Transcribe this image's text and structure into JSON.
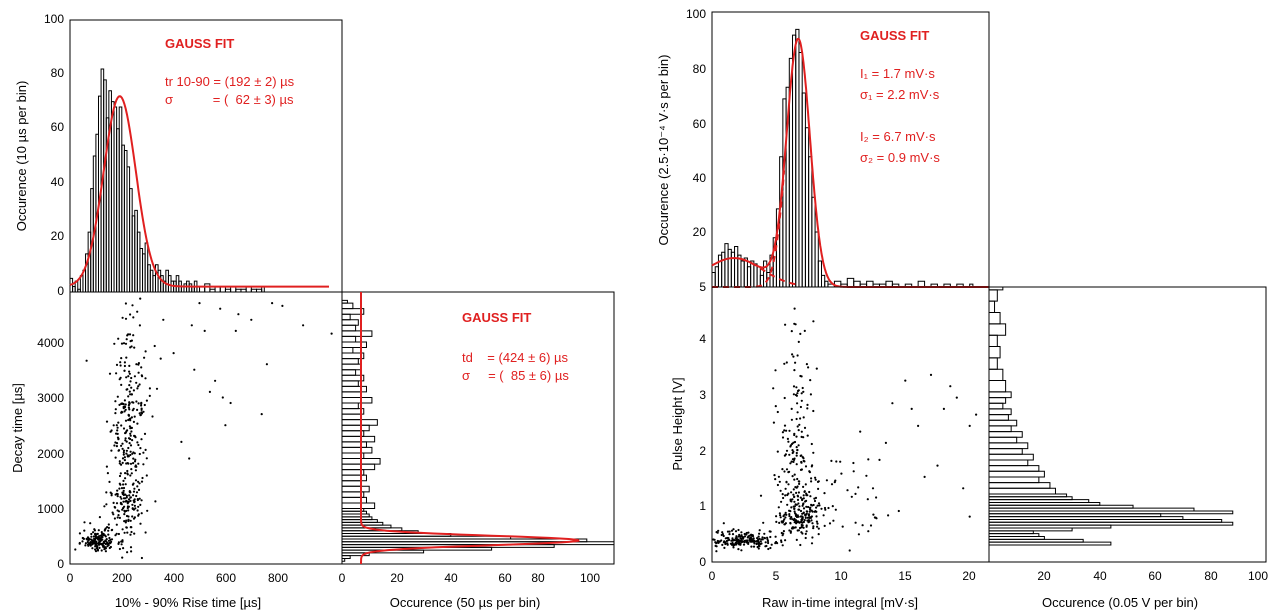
{
  "colors": {
    "axis": "#000000",
    "fit": "#e02020",
    "hist": "#000000",
    "points": "#000000"
  },
  "left": {
    "top_hist": {
      "ylabel": "Occurence (10 µs per bin)",
      "yticks": [
        "0",
        "20",
        "40",
        "60",
        "80",
        "100"
      ],
      "annotation": {
        "title": "GAUSS FIT",
        "line1": "tr 10-90 = (192 ± 2) µs",
        "line2": "σ           = (  62 ± 3) µs"
      }
    },
    "scatter": {
      "ylabel": "Decay time [µs]",
      "xlabel": "10% - 90% Rise time [µs]",
      "yticks": [
        "0",
        "1000",
        "2000",
        "3000",
        "4000"
      ],
      "xticks": [
        "0",
        "200",
        "400",
        "600",
        "800"
      ]
    },
    "side_hist": {
      "xlabel": "Occurence (50 µs per bin)",
      "xticks": [
        "0",
        "20",
        "40",
        "60",
        "80",
        "100"
      ],
      "annotation": {
        "title": "GAUSS FIT",
        "line1": "td    = (424 ± 6) µs",
        "line2": "σ     = (  85 ± 6) µs"
      }
    }
  },
  "right": {
    "top_hist": {
      "ylabel": "Occurence (2.5·10⁻⁴ V·s per bin)",
      "yticks": [
        "5",
        "20",
        "40",
        "60",
        "80",
        "100"
      ],
      "annotation": {
        "title": "GAUSS FIT",
        "line1": "I₁  = 1.7 mV·s",
        "line2": "σ₁ = 2.2 mV·s",
        "line3": "I₂  = 6.7 mV·s",
        "line4": "σ₂ = 0.9 mV·s"
      }
    },
    "scatter": {
      "ylabel": "Pulse Height [V]",
      "xlabel": "Raw in-time integral [mV·s]",
      "yticks": [
        "0",
        "1",
        "2",
        "3",
        "4"
      ],
      "xticks": [
        "0",
        "5",
        "10",
        "15",
        "20"
      ]
    },
    "side_hist": {
      "xlabel": "Occurence (0.05 V per bin)",
      "xticks": [
        "20",
        "40",
        "60",
        "80",
        "100"
      ]
    }
  },
  "chart_data": [
    {
      "id": "left-top",
      "type": "bar",
      "xlim": [
        0,
        1050
      ],
      "ylim": [
        0,
        100
      ],
      "bin_width": 10,
      "x": [
        0,
        10,
        20,
        30,
        40,
        50,
        60,
        70,
        80,
        90,
        100,
        110,
        120,
        130,
        140,
        150,
        160,
        170,
        180,
        190,
        200,
        210,
        220,
        230,
        240,
        250,
        260,
        270,
        280,
        290,
        300,
        310,
        320,
        330,
        340,
        350,
        360,
        370,
        380,
        390,
        400,
        410,
        420,
        430,
        440,
        450,
        460,
        470,
        480,
        490,
        500,
        520,
        540,
        560,
        580,
        600,
        620,
        640,
        660,
        680,
        700,
        720,
        740
      ],
      "values": [
        5,
        2,
        4,
        1,
        6,
        8,
        14,
        22,
        38,
        50,
        58,
        72,
        82,
        78,
        64,
        74,
        70,
        68,
        60,
        68,
        54,
        52,
        46,
        38,
        28,
        30,
        22,
        16,
        14,
        18,
        10,
        8,
        6,
        10,
        8,
        6,
        4,
        8,
        6,
        4,
        4,
        6,
        4,
        2,
        3,
        4,
        3,
        2,
        4,
        2,
        2,
        3,
        1,
        2,
        2,
        1,
        2,
        1,
        1,
        2,
        1,
        1,
        2
      ],
      "fit": {
        "mean": 192,
        "sigma": 62,
        "amplitude": 70,
        "baseline": 2,
        "label": "GAUSS FIT"
      }
    },
    {
      "id": "left-scatter",
      "type": "scatter",
      "xlim": [
        0,
        1050
      ],
      "ylim": [
        0,
        4900
      ],
      "clusters": [
        {
          "x_mean": 110,
          "x_sd": 35,
          "y_mean": 420,
          "y_sd": 130,
          "n": 170
        },
        {
          "x_mean": 215,
          "x_sd": 35,
          "y_mean": 1300,
          "y_sd": 750,
          "n": 230
        },
        {
          "x_mean": 225,
          "x_sd": 40,
          "y_mean": 2900,
          "y_sd": 900,
          "n": 160
        }
      ],
      "outliers": [
        [
          520,
          4200
        ],
        [
          560,
          3300
        ],
        [
          590,
          3000
        ],
        [
          600,
          2500
        ],
        [
          740,
          2700
        ],
        [
          760,
          3600
        ],
        [
          650,
          4500
        ],
        [
          780,
          4700
        ],
        [
          900,
          4300
        ],
        [
          1010,
          4150
        ],
        [
          540,
          3100
        ],
        [
          400,
          3800
        ],
        [
          620,
          2900
        ],
        [
          430,
          2200
        ],
        [
          460,
          1900
        ],
        [
          640,
          4200
        ],
        [
          700,
          4400
        ],
        [
          820,
          4650
        ],
        [
          500,
          4700
        ],
        [
          580,
          4600
        ],
        [
          470,
          4300
        ],
        [
          360,
          4400
        ],
        [
          350,
          3700
        ],
        [
          480,
          3500
        ]
      ]
    },
    {
      "id": "left-side",
      "type": "bar",
      "orientation": "horizontal",
      "xlim": [
        0,
        100
      ],
      "ylim": [
        0,
        4900
      ],
      "bin_width": 50,
      "y": [
        0,
        50,
        100,
        150,
        200,
        250,
        300,
        350,
        400,
        450,
        500,
        550,
        600,
        650,
        700,
        750,
        800,
        850,
        900,
        950,
        1000,
        1100,
        1200,
        1300,
        1400,
        1500,
        1600,
        1700,
        1800,
        1900,
        2000,
        2100,
        2200,
        2300,
        2400,
        2500,
        2600,
        2700,
        2800,
        2900,
        3000,
        3100,
        3200,
        3300,
        3400,
        3500,
        3600,
        3700,
        3800,
        3900,
        4000,
        4100,
        4200,
        4300,
        4400,
        4500,
        4600,
        4700
      ],
      "values": [
        0,
        1,
        3,
        10,
        30,
        55,
        78,
        100,
        90,
        62,
        40,
        28,
        22,
        18,
        15,
        13,
        11,
        10,
        9,
        8,
        12,
        9,
        8,
        10,
        7,
        9,
        8,
        12,
        14,
        8,
        11,
        9,
        12,
        8,
        10,
        13,
        7,
        8,
        6,
        11,
        7,
        9,
        6,
        8,
        5,
        7,
        6,
        8,
        4,
        9,
        5,
        11,
        5,
        6,
        3,
        8,
        4,
        2
      ],
      "fit": {
        "mean": 424,
        "sigma": 85,
        "amplitude": 80,
        "baseline": 7,
        "label": "GAUSS FIT"
      }
    },
    {
      "id": "right-top",
      "type": "bar",
      "xlim": [
        0,
        21.5
      ],
      "ylim": [
        5,
        100
      ],
      "bin_width": 0.25,
      "x": [
        0,
        0.25,
        0.5,
        0.75,
        1,
        1.25,
        1.5,
        1.75,
        2,
        2.25,
        2.5,
        2.75,
        3,
        3.25,
        3.5,
        3.75,
        4,
        4.25,
        4.5,
        4.75,
        5,
        5.25,
        5.5,
        5.75,
        6,
        6.25,
        6.5,
        6.75,
        7,
        7.25,
        7.5,
        7.75,
        8,
        8.25,
        8.5,
        8.75,
        9,
        9.5,
        10,
        10.5,
        11,
        11.5,
        12,
        12.5,
        13,
        13.5,
        14,
        15,
        16,
        17,
        18,
        19,
        20
      ],
      "values": [
        10,
        12,
        16,
        17,
        20,
        18,
        17,
        19,
        16,
        14,
        15,
        12,
        14,
        13,
        12,
        9,
        14,
        10,
        16,
        22,
        32,
        50,
        70,
        74,
        84,
        92,
        94,
        86,
        72,
        60,
        50,
        36,
        24,
        14,
        9,
        7,
        6,
        7,
        6,
        8,
        7,
        6,
        7,
        6,
        6,
        7,
        6,
        6,
        7,
        6,
        6,
        6,
        6
      ],
      "fit": [
        {
          "mean": 1.7,
          "sigma": 2.2,
          "amplitude": 15,
          "label": "I₁"
        },
        {
          "mean": 6.7,
          "sigma": 0.9,
          "amplitude": 90,
          "label": "I₂"
        }
      ],
      "fit_baseline": 5
    },
    {
      "id": "right-scatter",
      "type": "scatter",
      "xlim": [
        0,
        21.5
      ],
      "ylim": [
        0,
        4.85
      ],
      "clusters": [
        {
          "x_mean": 2.5,
          "x_sd": 1.4,
          "y_mean": 0.38,
          "y_sd": 0.09,
          "n": 200
        },
        {
          "x_mean": 6.8,
          "x_sd": 0.9,
          "y_mean": 0.85,
          "y_sd": 0.35,
          "n": 220
        },
        {
          "x_mean": 6.6,
          "x_sd": 0.7,
          "y_mean": 2.4,
          "y_sd": 1.1,
          "n": 120
        },
        {
          "x_mean": 9.5,
          "x_sd": 2.2,
          "y_mean": 1.0,
          "y_sd": 0.5,
          "n": 60
        }
      ],
      "outliers": [
        [
          14,
          2.8
        ],
        [
          15,
          3.2
        ],
        [
          16,
          2.4
        ],
        [
          17,
          3.3
        ],
        [
          18,
          2.7
        ],
        [
          19,
          2.9
        ],
        [
          20,
          2.4
        ],
        [
          20.5,
          2.6
        ],
        [
          13,
          1.8
        ],
        [
          12.5,
          1.3
        ],
        [
          14.5,
          0.9
        ],
        [
          13.5,
          2.1
        ],
        [
          15.5,
          2.7
        ],
        [
          17.5,
          1.7
        ],
        [
          19.5,
          1.3
        ],
        [
          11,
          1.6
        ],
        [
          11.5,
          2.3
        ],
        [
          16.5,
          1.5
        ],
        [
          18.5,
          3.1
        ],
        [
          20,
          0.8
        ]
      ]
    },
    {
      "id": "right-side",
      "type": "bar",
      "orientation": "horizontal",
      "xlim": [
        0,
        100
      ],
      "ylim": [
        0,
        4.85
      ],
      "bin_width": 0.05,
      "y": [
        0.25,
        0.3,
        0.35,
        0.4,
        0.45,
        0.5,
        0.55,
        0.6,
        0.65,
        0.7,
        0.75,
        0.8,
        0.85,
        0.9,
        0.95,
        1.0,
        1.05,
        1.1,
        1.15,
        1.2,
        1.3,
        1.4,
        1.5,
        1.6,
        1.7,
        1.8,
        1.9,
        2.0,
        2.1,
        2.2,
        2.3,
        2.4,
        2.5,
        2.6,
        2.7,
        2.8,
        2.9,
        3.0,
        3.2,
        3.4,
        3.6,
        3.8,
        4.0,
        4.2,
        4.4,
        4.6,
        4.8
      ],
      "values": [
        0,
        44,
        34,
        20,
        18,
        16,
        30,
        44,
        88,
        84,
        70,
        62,
        88,
        74,
        52,
        40,
        36,
        30,
        28,
        24,
        22,
        18,
        20,
        18,
        14,
        16,
        12,
        14,
        10,
        12,
        8,
        10,
        7,
        8,
        5,
        6,
        8,
        6,
        5,
        3,
        4,
        3,
        6,
        4,
        2,
        3,
        5
      ]
    }
  ]
}
